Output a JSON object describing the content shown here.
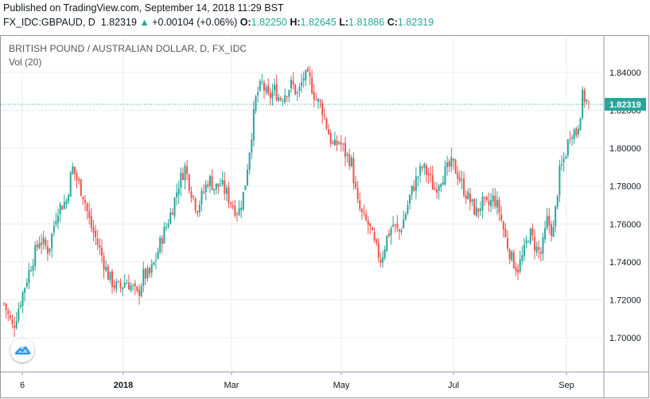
{
  "header": {
    "published": "Published on TradingView.com, September 14, 2018 11:29 BST",
    "symbol": "FX_IDC:GBPAUD, D",
    "last": "1.82319",
    "arrow": "▲",
    "change": "+0.00104 (+0.06%)",
    "o_label": "O:",
    "o_value": "1.82250",
    "h_label": "H:",
    "h_value": "1.82645",
    "l_label": "L:",
    "l_value": "1.81886",
    "c_label": "C:",
    "c_value": "1.82319"
  },
  "legend": {
    "title": "BRITISH POUND / AUSTRALIAN DOLLAR, D, FX_IDC",
    "volume": "Vol (20)"
  },
  "colors": {
    "up": "#26a69a",
    "down": "#ef5350",
    "grid": "#eaecf0",
    "price_line": "#26a69a",
    "price_tag_bg": "#26a69a"
  },
  "icons": {
    "logo": "tradingview-cloud-icon"
  },
  "chart_data": {
    "type": "candlestick",
    "title": "BRITISH POUND / AUSTRALIAN DOLLAR, D, FX_IDC",
    "ylim": [
      1.685,
      1.855
    ],
    "y_ticks": [
      "1.84000",
      "1.82000",
      "1.80000",
      "1.78000",
      "1.76000",
      "1.74000",
      "1.72000",
      "1.70000"
    ],
    "x_ticks": [
      "6",
      "2018",
      "Mar",
      "May",
      "Jul",
      "Sep"
    ],
    "last_price": "1.82319",
    "grid": true,
    "close_path": [
      [
        0,
        1.718
      ],
      [
        6,
        1.705
      ],
      [
        12,
        1.722
      ],
      [
        18,
        1.738
      ],
      [
        24,
        1.752
      ],
      [
        30,
        1.746
      ],
      [
        36,
        1.768
      ],
      [
        42,
        1.772
      ],
      [
        46,
        1.79
      ],
      [
        50,
        1.782
      ],
      [
        54,
        1.774
      ],
      [
        58,
        1.76
      ],
      [
        62,
        1.752
      ],
      [
        66,
        1.743
      ],
      [
        70,
        1.733
      ],
      [
        74,
        1.728
      ],
      [
        78,
        1.726
      ],
      [
        82,
        1.73
      ],
      [
        86,
        1.727
      ],
      [
        90,
        1.722
      ],
      [
        94,
        1.733
      ],
      [
        98,
        1.733
      ],
      [
        102,
        1.741
      ],
      [
        106,
        1.752
      ],
      [
        110,
        1.76
      ],
      [
        114,
        1.77
      ],
      [
        118,
        1.782
      ],
      [
        122,
        1.79
      ],
      [
        126,
        1.778
      ],
      [
        130,
        1.768
      ],
      [
        134,
        1.776
      ],
      [
        138,
        1.784
      ],
      [
        142,
        1.779
      ],
      [
        146,
        1.781
      ],
      [
        150,
        1.776
      ],
      [
        154,
        1.77
      ],
      [
        158,
        1.766
      ],
      [
        162,
        1.778
      ],
      [
        166,
        1.803
      ],
      [
        170,
        1.828
      ],
      [
        174,
        1.834
      ],
      [
        178,
        1.826
      ],
      [
        182,
        1.831
      ],
      [
        186,
        1.826
      ],
      [
        190,
        1.83
      ],
      [
        194,
        1.834
      ],
      [
        198,
        1.828
      ],
      [
        202,
        1.838
      ],
      [
        206,
        1.836
      ],
      [
        210,
        1.826
      ],
      [
        214,
        1.822
      ],
      [
        218,
        1.81
      ],
      [
        222,
        1.8
      ],
      [
        226,
        1.804
      ],
      [
        230,
        1.797
      ],
      [
        234,
        1.793
      ],
      [
        238,
        1.771
      ],
      [
        242,
        1.763
      ],
      [
        246,
        1.759
      ],
      [
        250,
        1.748
      ],
      [
        254,
        1.741
      ],
      [
        258,
        1.753
      ],
      [
        262,
        1.76
      ],
      [
        266,
        1.755
      ],
      [
        270,
        1.764
      ],
      [
        274,
        1.776
      ],
      [
        278,
        1.784
      ],
      [
        282,
        1.79
      ],
      [
        286,
        1.786
      ],
      [
        290,
        1.778
      ],
      [
        294,
        1.784
      ],
      [
        298,
        1.788
      ],
      [
        302,
        1.792
      ],
      [
        306,
        1.786
      ],
      [
        310,
        1.778
      ],
      [
        314,
        1.772
      ],
      [
        318,
        1.766
      ],
      [
        322,
        1.771
      ],
      [
        326,
        1.769
      ],
      [
        330,
        1.774
      ],
      [
        334,
        1.766
      ],
      [
        338,
        1.752
      ],
      [
        342,
        1.742
      ],
      [
        346,
        1.736
      ],
      [
        350,
        1.744
      ],
      [
        354,
        1.756
      ],
      [
        358,
        1.748
      ],
      [
        362,
        1.744
      ],
      [
        366,
        1.762
      ],
      [
        370,
        1.755
      ],
      [
        374,
        1.786
      ],
      [
        378,
        1.796
      ],
      [
        382,
        1.81
      ],
      [
        386,
        1.808
      ],
      [
        390,
        1.828
      ],
      [
        394,
        1.823
      ]
    ],
    "days_span": 394
  }
}
